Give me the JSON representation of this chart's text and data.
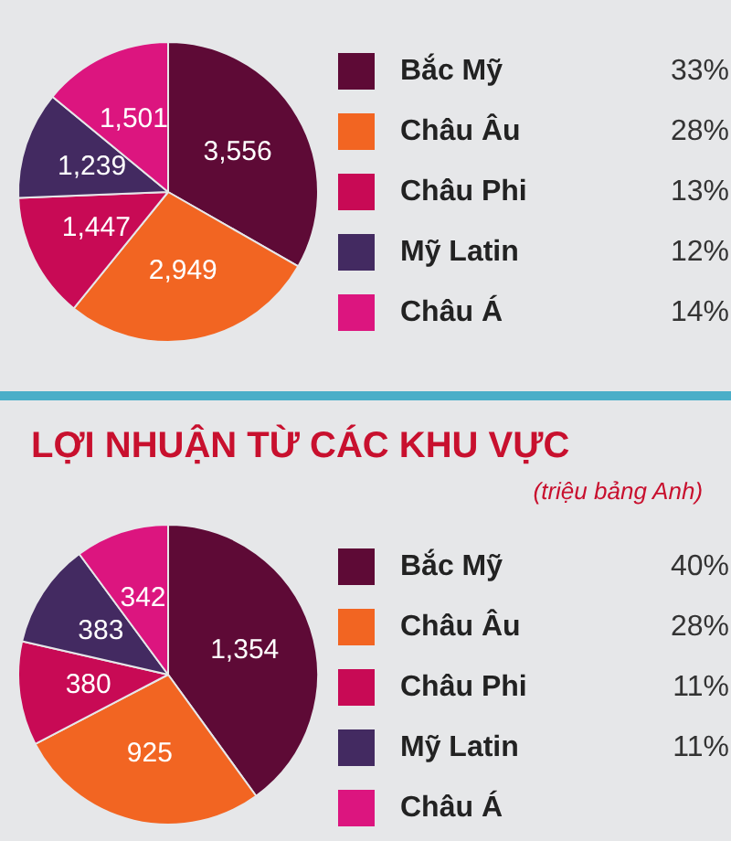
{
  "chart_data": [
    {
      "type": "pie",
      "categories": [
        "Bắc Mỹ",
        "Châu Âu",
        "Châu Phi",
        "Mỹ Latin",
        "Châu Á"
      ],
      "values": [
        3556,
        2949,
        1447,
        1239,
        1501
      ],
      "colors": [
        "#5e0a36",
        "#f26522",
        "#c80a55",
        "#432a61",
        "#dc157f"
      ],
      "value_labels": [
        "3,556",
        "2,949",
        "1,447",
        "1,239",
        "1,501"
      ],
      "annotations": [
        "33%",
        "28%",
        "13%",
        "12%",
        "14%"
      ],
      "legend": "right"
    },
    {
      "type": "pie",
      "title": "LỢI NHUẬN TỪ CÁC KHU VỰC",
      "subtitle": "(triệu bảng Anh)",
      "categories": [
        "Bắc Mỹ",
        "Châu Âu",
        "Châu Phi",
        "Mỹ Latin",
        "Châu Á"
      ],
      "values": [
        1354,
        925,
        380,
        383,
        342
      ],
      "colors": [
        "#5e0a36",
        "#f26522",
        "#c80a55",
        "#432a61",
        "#dc157f"
      ],
      "value_labels": [
        "1,354",
        "925",
        "380",
        "383",
        "342"
      ],
      "annotations": [
        "40%",
        "28%",
        "11%",
        "11%"
      ],
      "legend": "right"
    }
  ]
}
